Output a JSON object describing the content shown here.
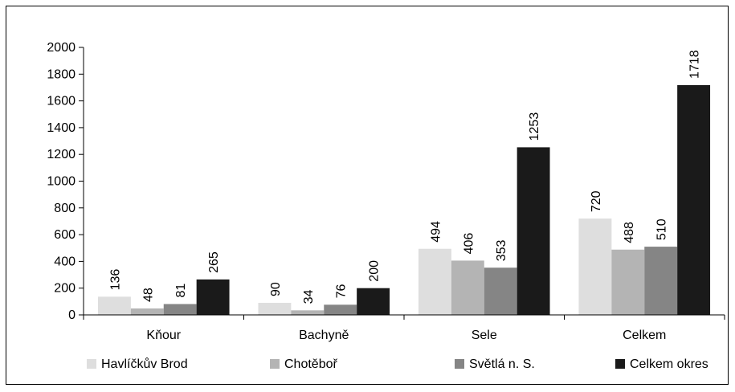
{
  "chart_data": {
    "type": "bar",
    "categories": [
      "Kňour",
      "Bachyně",
      "Sele",
      "Celkem"
    ],
    "series": [
      {
        "name": "Havlíčkův Brod",
        "values": [
          136,
          90,
          494,
          720
        ],
        "color": "#dedede"
      },
      {
        "name": "Chotěboř",
        "values": [
          48,
          34,
          406,
          488
        ],
        "color": "#b4b4b4"
      },
      {
        "name": "Světlá n. S.",
        "values": [
          81,
          76,
          353,
          510
        ],
        "color": "#858585"
      },
      {
        "name": "Celkem okres",
        "values": [
          265,
          200,
          1253,
          1718
        ],
        "color": "#1a1a1a"
      }
    ],
    "yticks": [
      "0",
      "200",
      "400",
      "600",
      "800",
      "1000",
      "1200",
      "1400",
      "1600",
      "1800",
      "2000"
    ],
    "ylim": [
      0,
      2000
    ],
    "ystep": 200,
    "grid": false,
    "legend_position": "bottom",
    "data_labels": true,
    "data_label_rotation": "vertical"
  }
}
